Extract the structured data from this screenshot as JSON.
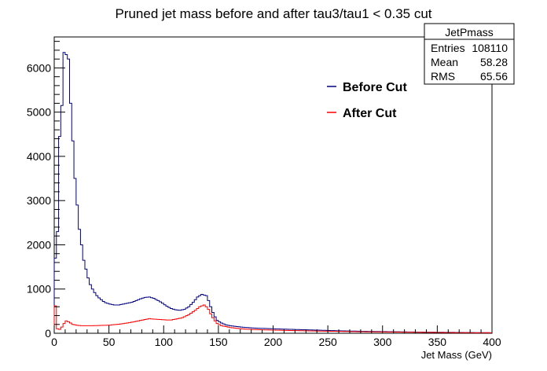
{
  "chart_data": {
    "type": "histogram",
    "title": "Pruned jet mass before and after tau3/tau1 < 0.35 cut",
    "xlabel": "Jet Mass (GeV)",
    "ylabel": "",
    "xlim": [
      0,
      400
    ],
    "ylim": [
      0,
      6700
    ],
    "bin_width": 2,
    "x_ticks": [
      0,
      50,
      100,
      150,
      200,
      250,
      300,
      350,
      400
    ],
    "y_ticks": [
      0,
      1000,
      2000,
      3000,
      4000,
      5000,
      6000
    ],
    "grid": false,
    "legend_position": "top-right",
    "series": [
      {
        "name": "Before Cut",
        "color": "#000080",
        "points": [
          [
            0,
            1700
          ],
          [
            2,
            2300
          ],
          [
            4,
            4450
          ],
          [
            6,
            5150
          ],
          [
            8,
            6350
          ],
          [
            10,
            6300
          ],
          [
            12,
            6200
          ],
          [
            14,
            5200
          ],
          [
            16,
            4350
          ],
          [
            18,
            3500
          ],
          [
            20,
            2900
          ],
          [
            22,
            2350
          ],
          [
            24,
            2000
          ],
          [
            26,
            1650
          ],
          [
            28,
            1450
          ],
          [
            30,
            1250
          ],
          [
            32,
            1100
          ],
          [
            34,
            1000
          ],
          [
            36,
            920
          ],
          [
            38,
            850
          ],
          [
            40,
            800
          ],
          [
            42,
            760
          ],
          [
            44,
            720
          ],
          [
            46,
            690
          ],
          [
            50,
            660
          ],
          [
            54,
            640
          ],
          [
            58,
            640
          ],
          [
            62,
            660
          ],
          [
            66,
            680
          ],
          [
            70,
            700
          ],
          [
            74,
            740
          ],
          [
            78,
            780
          ],
          [
            82,
            810
          ],
          [
            86,
            820
          ],
          [
            90,
            790
          ],
          [
            94,
            740
          ],
          [
            98,
            680
          ],
          [
            102,
            610
          ],
          [
            106,
            560
          ],
          [
            110,
            530
          ],
          [
            114,
            520
          ],
          [
            118,
            540
          ],
          [
            122,
            600
          ],
          [
            126,
            700
          ],
          [
            130,
            820
          ],
          [
            134,
            880
          ],
          [
            138,
            850
          ],
          [
            140,
            740
          ],
          [
            142,
            600
          ],
          [
            144,
            470
          ],
          [
            146,
            370
          ],
          [
            148,
            290
          ],
          [
            152,
            230
          ],
          [
            156,
            190
          ],
          [
            160,
            170
          ],
          [
            170,
            140
          ],
          [
            180,
            120
          ],
          [
            200,
            100
          ],
          [
            220,
            85
          ],
          [
            240,
            70
          ],
          [
            260,
            55
          ],
          [
            280,
            45
          ],
          [
            300,
            38
          ],
          [
            320,
            30
          ],
          [
            340,
            25
          ],
          [
            360,
            20
          ],
          [
            380,
            15
          ],
          [
            398,
            12
          ]
        ]
      },
      {
        "name": "After Cut",
        "color": "#ff0000",
        "points": [
          [
            0,
            620
          ],
          [
            2,
            100
          ],
          [
            4,
            90
          ],
          [
            6,
            140
          ],
          [
            8,
            220
          ],
          [
            10,
            280
          ],
          [
            12,
            260
          ],
          [
            14,
            230
          ],
          [
            16,
            200
          ],
          [
            20,
            180
          ],
          [
            24,
            170
          ],
          [
            30,
            170
          ],
          [
            40,
            175
          ],
          [
            50,
            185
          ],
          [
            60,
            210
          ],
          [
            70,
            250
          ],
          [
            80,
            300
          ],
          [
            86,
            330
          ],
          [
            90,
            320
          ],
          [
            96,
            310
          ],
          [
            102,
            300
          ],
          [
            106,
            300
          ],
          [
            110,
            320
          ],
          [
            116,
            350
          ],
          [
            122,
            420
          ],
          [
            128,
            520
          ],
          [
            132,
            600
          ],
          [
            136,
            640
          ],
          [
            138,
            600
          ],
          [
            140,
            540
          ],
          [
            142,
            440
          ],
          [
            144,
            350
          ],
          [
            146,
            280
          ],
          [
            148,
            220
          ],
          [
            152,
            170
          ],
          [
            160,
            130
          ],
          [
            170,
            100
          ],
          [
            180,
            85
          ],
          [
            200,
            70
          ],
          [
            220,
            60
          ],
          [
            240,
            50
          ],
          [
            260,
            42
          ],
          [
            280,
            35
          ],
          [
            300,
            30
          ],
          [
            320,
            25
          ],
          [
            340,
            20
          ],
          [
            360,
            15
          ],
          [
            380,
            12
          ],
          [
            398,
            10
          ]
        ]
      }
    ]
  },
  "stats_box": {
    "name": "JetPmass",
    "rows": [
      {
        "label": "Entries",
        "value": "108110"
      },
      {
        "label": "Mean",
        "value": "58.28"
      },
      {
        "label": "RMS",
        "value": "65.56"
      }
    ]
  }
}
